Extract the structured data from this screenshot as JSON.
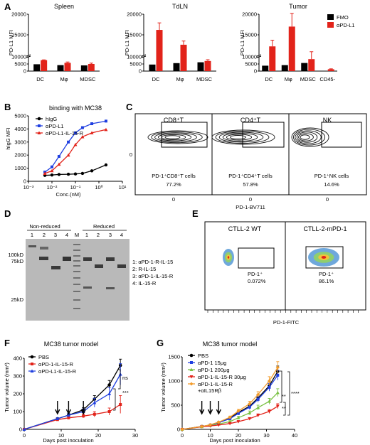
{
  "panels": {
    "A": {
      "label": "A",
      "ylabel": "PD-L1 MFI",
      "legend": [
        "FMO",
        "αPD-L1"
      ],
      "colors": {
        "fmo": "#000000",
        "apdl1": "#e2231a"
      },
      "subplots": [
        {
          "title": "Spleen",
          "categories": [
            "DC",
            "Mφ",
            "MDSC"
          ],
          "fmo": [
            4800,
            4200,
            4000
          ],
          "apdl1": [
            7700,
            5800,
            5000
          ],
          "err": [
            200,
            600,
            600
          ],
          "lower_ticks": [
            "0",
            "5000",
            "10000"
          ],
          "upper_ticks": [
            "10000",
            "15000",
            "20000"
          ]
        },
        {
          "title": "TdLN",
          "categories": [
            "DC",
            "Mφ",
            "MDSC"
          ],
          "fmo": [
            4600,
            5600,
            6200
          ],
          "apdl1": [
            16200,
            12600,
            7100
          ],
          "err": [
            1700,
            900,
            900
          ],
          "lower_ticks": [
            "0",
            "5000",
            "10000"
          ],
          "upper_ticks": [
            "10000",
            "15000",
            "20000"
          ]
        },
        {
          "title": "Tumor",
          "categories": [
            "DC",
            "Mφ",
            "MDSC",
            "CD45-"
          ],
          "fmo": [
            3800,
            4200,
            5700,
            0
          ],
          "apdl1": [
            12200,
            17000,
            8400,
            1300
          ],
          "err": [
            1500,
            3200,
            2500,
            300
          ],
          "lower_ticks": [
            "0",
            "5000",
            "10000"
          ],
          "upper_ticks": [
            "10000",
            "15000",
            "20000"
          ]
        }
      ]
    },
    "B": {
      "label": "B",
      "title": "binding with MC38",
      "ylabel": "hIgG MFI",
      "xlabel": "Conc.(nM)",
      "yticks": [
        "0",
        "1000",
        "2000",
        "3000",
        "4000",
        "5000"
      ],
      "xticks": [
        "10⁻³",
        "10⁻²",
        "10⁻¹",
        "10⁰",
        "10¹"
      ],
      "legend": [
        "hIgG",
        "αPD-L1",
        "αPD-L1-IL-15-R"
      ]
    },
    "C": {
      "label": "C",
      "columns": [
        "CD8⁺T",
        "CD4⁺T",
        "NK"
      ],
      "gates": [
        "PD-1⁺CD8⁺T cells",
        "PD-1⁺CD4⁺T cells",
        "PD-1⁺NK cells"
      ],
      "percents": [
        "77.2%",
        "57.8%",
        "14.6%"
      ],
      "xlabel": "PD-1-BV711",
      "zero": "0"
    },
    "D": {
      "label": "D",
      "nonreduced": "Non-reduced",
      "reduced": "Reduced",
      "lanes_left": [
        "1",
        "2",
        "3",
        "4"
      ],
      "lanes_right": [
        "1",
        "2",
        "3",
        "4"
      ],
      "marker_lane": "M",
      "mw": [
        "100kD",
        "75kD",
        "25kD"
      ],
      "key": [
        "1: αPD-1-R-IL-15",
        "2: R-IL-15",
        "3: αPD-1-IL-15-R",
        "4: IL-15-R"
      ]
    },
    "E": {
      "label": "E",
      "columns": [
        "CTLL-2 WT",
        "CTLL-2-mPD-1"
      ],
      "gate": [
        "PD-1⁺",
        "PD-1⁺"
      ],
      "percents": [
        "0.072%",
        "86.1%"
      ],
      "xlabel": "PD-1-FITC"
    },
    "F": {
      "label": "F",
      "title": "MC38 tumor model",
      "ylabel": "Tumor volume (mm³)",
      "xlabel": "Days post inoculation",
      "legend": [
        "PBS",
        "αPD-1-IL-15-R",
        "αPD-L1-IL-15-R"
      ],
      "sig": [
        "ns",
        "***"
      ]
    },
    "G": {
      "label": "G",
      "title": "MC38 tumor model",
      "ylabel": "Tumor volume (mm³)",
      "xlabel": "Days post inoculation",
      "legend": [
        "PBS",
        "αPD-1 15μg",
        "αPD-1 200μg",
        "αPD-1-IL-15-R 30μg",
        "αPD-1-IL-15-R",
        "+αIL15Rβ"
      ],
      "sig": [
        "**",
        "**",
        "****"
      ]
    }
  },
  "chart_data": [
    {
      "type": "line",
      "title": "binding with MC38",
      "xlabel": "Conc.(nM)",
      "ylabel": "hIgG MFI",
      "xscale": "log",
      "ylim": [
        0,
        5000
      ],
      "series": [
        {
          "name": "hIgG",
          "x": [
            0.005,
            0.01,
            0.02,
            0.05,
            0.1,
            0.2,
            0.5,
            2
          ],
          "values": [
            450,
            480,
            520,
            540,
            560,
            600,
            800,
            1250
          ]
        },
        {
          "name": "αPD-L1",
          "x": [
            0.005,
            0.01,
            0.02,
            0.05,
            0.1,
            0.2,
            0.5,
            2
          ],
          "values": [
            700,
            1100,
            1900,
            3000,
            3700,
            4100,
            4400,
            4600
          ]
        },
        {
          "name": "αPD-L1-IL-15-R",
          "x": [
            0.005,
            0.01,
            0.02,
            0.05,
            0.1,
            0.2,
            0.5,
            2
          ],
          "values": [
            600,
            800,
            1300,
            2000,
            2800,
            3400,
            3700,
            3950
          ]
        }
      ]
    },
    {
      "type": "line",
      "title": "MC38 tumor model",
      "xlabel": "Days post inoculation",
      "ylabel": "Tumor volume (mm³)",
      "xlim": [
        0,
        30
      ],
      "ylim": [
        0,
        400
      ],
      "series": [
        {
          "name": "PBS",
          "x": [
            0,
            9,
            12,
            16,
            19,
            23,
            26
          ],
          "values": [
            0,
            60,
            80,
            110,
            170,
            250,
            360
          ],
          "err": [
            0,
            5,
            8,
            12,
            20,
            25,
            35
          ]
        },
        {
          "name": "αPD-1-IL-15-R",
          "x": [
            0,
            9,
            12,
            16,
            19,
            23,
            26
          ],
          "values": [
            0,
            55,
            65,
            75,
            85,
            100,
            140
          ],
          "err": [
            0,
            5,
            8,
            10,
            15,
            20,
            50
          ]
        },
        {
          "name": "αPD-L1-IL-15-R",
          "x": [
            0,
            9,
            12,
            16,
            19,
            23,
            26
          ],
          "values": [
            0,
            60,
            80,
            100,
            150,
            200,
            310
          ],
          "err": [
            0,
            5,
            10,
            15,
            25,
            35,
            60
          ]
        }
      ]
    },
    {
      "type": "line",
      "title": "MC38 tumor model",
      "xlabel": "Days post inoculation",
      "ylabel": "Tumor volume (mm³)",
      "xlim": [
        0,
        40
      ],
      "ylim": [
        0,
        1500
      ],
      "series": [
        {
          "name": "PBS",
          "x": [
            0,
            7,
            10,
            13,
            17,
            20,
            24,
            27,
            31,
            34
          ],
          "values": [
            0,
            60,
            90,
            140,
            230,
            350,
            480,
            650,
            900,
            1200
          ],
          "err": [
            0,
            8,
            10,
            15,
            25,
            35,
            50,
            60,
            80,
            110
          ]
        },
        {
          "name": "αPD-1 15μg",
          "x": [
            0,
            7,
            10,
            13,
            17,
            20,
            24,
            27,
            31,
            34
          ],
          "values": [
            0,
            60,
            90,
            140,
            220,
            330,
            460,
            620,
            870,
            1120
          ],
          "err": [
            0,
            8,
            10,
            15,
            25,
            35,
            50,
            60,
            80,
            100
          ]
        },
        {
          "name": "αPD-1 200μg",
          "x": [
            0,
            7,
            10,
            13,
            17,
            20,
            24,
            27,
            31,
            34
          ],
          "values": [
            0,
            55,
            80,
            110,
            160,
            240,
            340,
            450,
            580,
            760
          ],
          "err": [
            0,
            8,
            10,
            15,
            20,
            30,
            40,
            50,
            60,
            80
          ]
        },
        {
          "name": "αPD-1-IL-15-R 30μg",
          "x": [
            0,
            7,
            10,
            13,
            17,
            20,
            24,
            27,
            31,
            34
          ],
          "values": [
            0,
            55,
            70,
            90,
            120,
            160,
            220,
            290,
            370,
            480
          ],
          "err": [
            0,
            6,
            8,
            10,
            15,
            20,
            25,
            30,
            40,
            50
          ]
        },
        {
          "name": "αPD-1-IL-15-R +αIL15Rβ",
          "x": [
            0,
            7,
            10,
            13,
            17,
            20,
            24,
            27,
            31,
            34
          ],
          "values": [
            0,
            60,
            95,
            150,
            250,
            380,
            530,
            720,
            1000,
            1280
          ],
          "err": [
            0,
            8,
            10,
            15,
            25,
            35,
            50,
            60,
            90,
            120
          ]
        }
      ]
    }
  ]
}
